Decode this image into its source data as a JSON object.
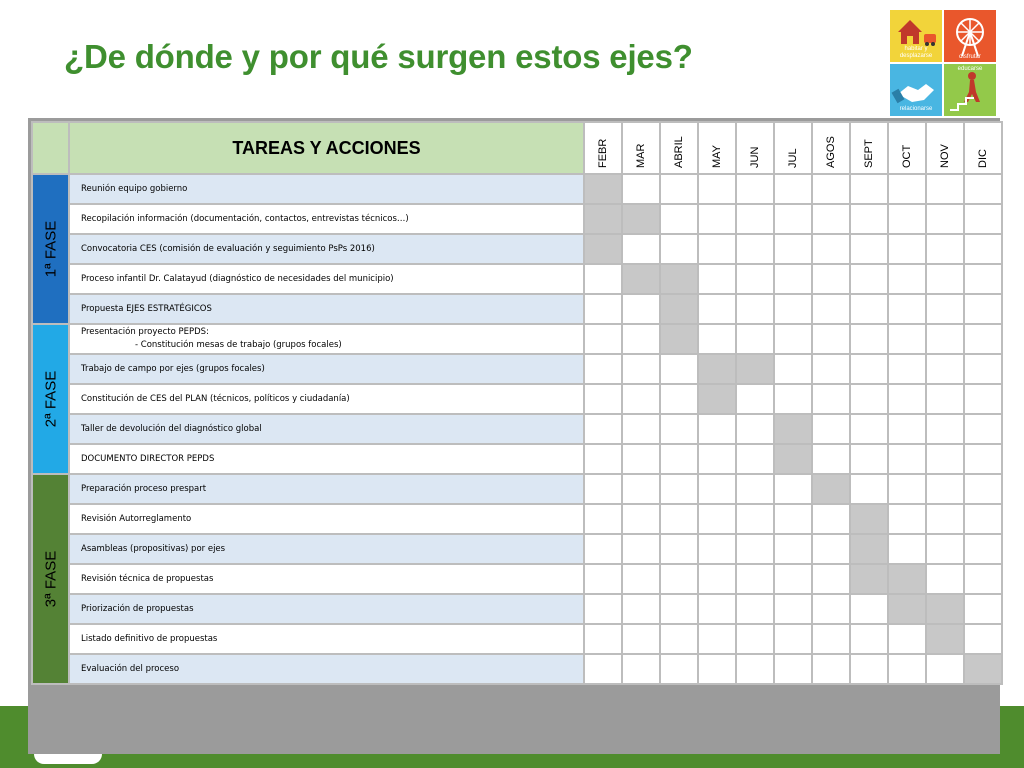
{
  "title": "¿De dónde y por qué surgen estos ejes?",
  "logo": {
    "piece_labels": [
      "habitar y desplazarse",
      "disfrutar",
      "relacionarse",
      "educarse"
    ],
    "colors": [
      "#f2d43a",
      "#e9572c",
      "#49b6e2",
      "#93c94a"
    ]
  },
  "table": {
    "header": "TAREAS Y ACCIONES",
    "months": [
      "FEBR",
      "MAR",
      "ABRIL",
      "MAY",
      "JUN",
      "JUL",
      "AGOS",
      "SEPT",
      "OCT",
      "NOV",
      "DIC"
    ],
    "phases": [
      {
        "label": "1ª FASE",
        "color": "#1f6fc0",
        "rows": 5
      },
      {
        "label": "2ª FASE",
        "color": "#22a9e6",
        "rows": 5
      },
      {
        "label": "3ª FASE",
        "color": "#548235",
        "rows": 7
      }
    ],
    "tasks": [
      {
        "label": "Reunión equipo gobierno",
        "months": [
          "FEBR"
        ]
      },
      {
        "label": "Recopilación información (documentación, contactos, entrevistas técnicos…)",
        "months": [
          "FEBR",
          "MAR"
        ]
      },
      {
        "label": "Convocatoria CES (comisión de evaluación y seguimiento PsPs 2016)",
        "months": [
          "FEBR"
        ]
      },
      {
        "label": "Proceso infantil Dr. Calatayud (diagnóstico de necesidades del municipio)",
        "months": [
          "MAR",
          "ABRIL"
        ]
      },
      {
        "label": "Propuesta EJES ESTRATÉGICOS",
        "months": [
          "ABRIL"
        ]
      },
      {
        "label": "Presentación proyecto PEPDS:",
        "sub": "- Constitución mesas de trabajo (grupos focales)",
        "months": [
          "ABRIL"
        ]
      },
      {
        "label": "Trabajo de campo por ejes  (grupos focales)",
        "months": [
          "MAY",
          "JUN"
        ]
      },
      {
        "label": "Constitución de CES del PLAN  (técnicos, políticos y ciudadanía)",
        "months": [
          "MAY"
        ]
      },
      {
        "label": "Taller de devolución del diagnóstico global",
        "months": [
          "JUL"
        ]
      },
      {
        "label": "DOCUMENTO DIRECTOR PEPDS",
        "months": [
          "JUL"
        ]
      },
      {
        "label": "Preparación proceso prespart",
        "months": [
          "AGOS"
        ]
      },
      {
        "label": "Revisión Autorreglamento",
        "months": [
          "SEPT"
        ]
      },
      {
        "label": "Asambleas (propositivas) por ejes",
        "months": [
          "SEPT"
        ]
      },
      {
        "label": "Revisión técnica de propuestas",
        "months": [
          "SEPT",
          "OCT"
        ]
      },
      {
        "label": "Priorización de propuestas",
        "months": [
          "OCT",
          "NOV"
        ]
      },
      {
        "label": "Listado definitivo de propuestas",
        "months": [
          "NOV"
        ]
      },
      {
        "label": "Evaluación del proceso",
        "months": [
          "DIC"
        ]
      }
    ]
  }
}
